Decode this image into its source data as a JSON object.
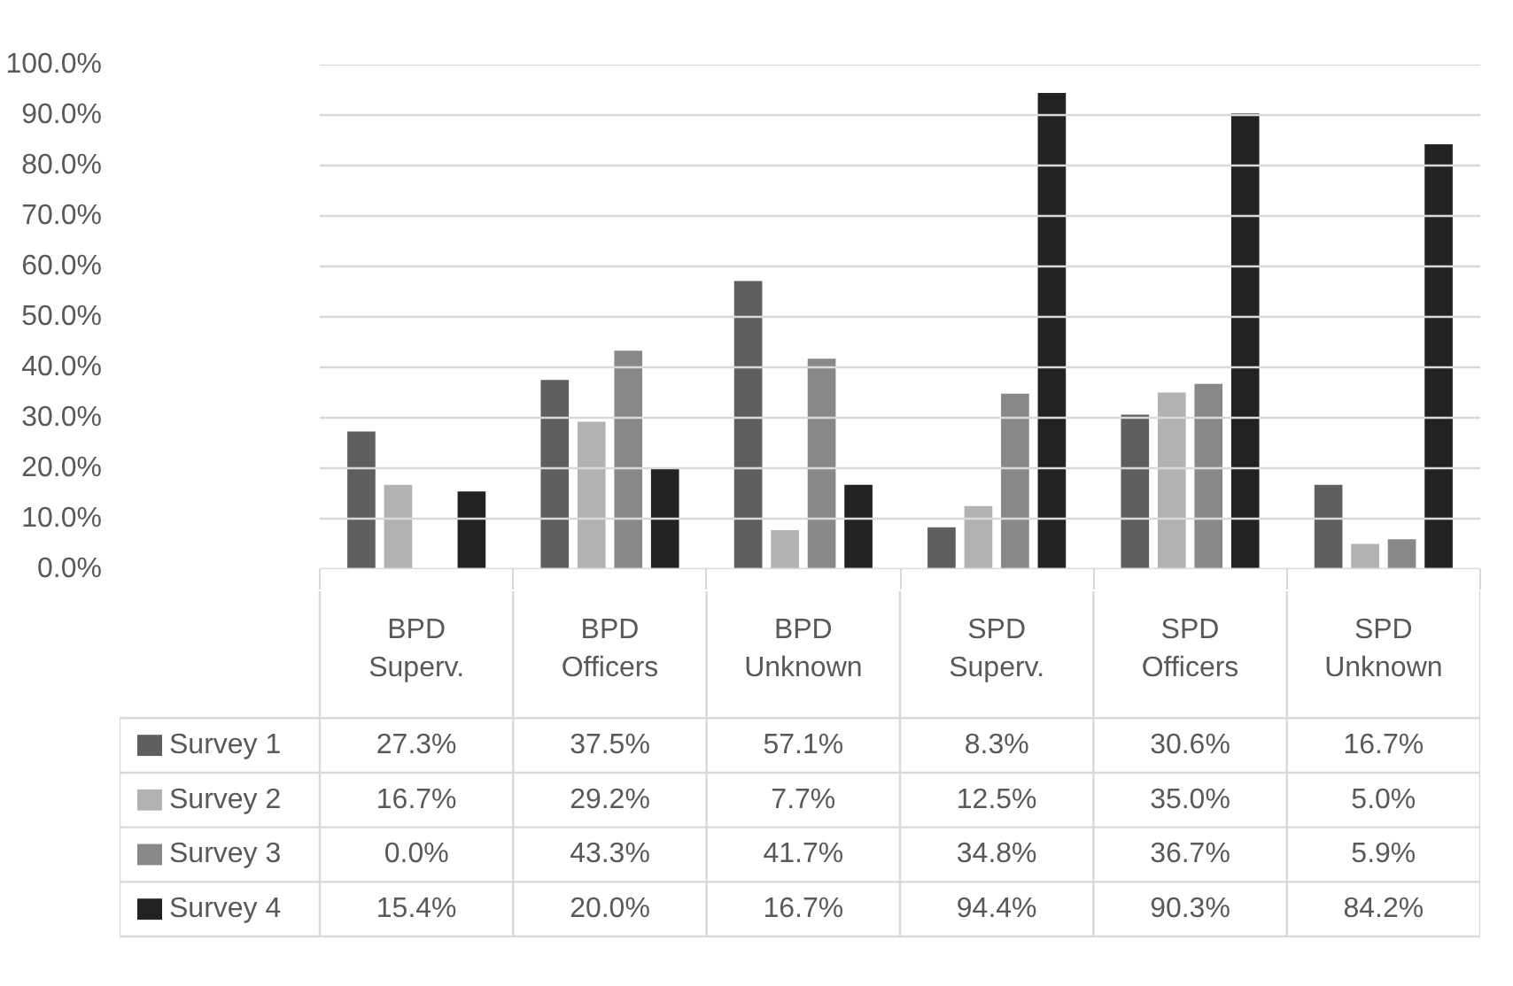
{
  "chart_data": {
    "type": "bar",
    "categories": [
      "BPD Superv.",
      "BPD Officers",
      "BPD Unknown",
      "SPD Superv.",
      "SPD Officers",
      "SPD Unknown"
    ],
    "series": [
      {
        "name": "Survey 1",
        "color": "#5f5f5f",
        "values": [
          27.3,
          37.5,
          57.1,
          8.3,
          30.6,
          16.7
        ],
        "value_labels": [
          "27.3%",
          "37.5%",
          "57.1%",
          "8.3%",
          "30.6%",
          "16.7%"
        ]
      },
      {
        "name": "Survey 2",
        "color": "#b2b2b2",
        "values": [
          16.7,
          29.2,
          7.7,
          12.5,
          35.0,
          5.0
        ],
        "value_labels": [
          "16.7%",
          "29.2%",
          "7.7%",
          "12.5%",
          "35.0%",
          "5.0%"
        ]
      },
      {
        "name": "Survey 3",
        "color": "#888888",
        "values": [
          0.0,
          43.3,
          41.7,
          34.8,
          36.7,
          5.9
        ],
        "value_labels": [
          "0.0%",
          "43.3%",
          "41.7%",
          "34.8%",
          "36.7%",
          "5.9%"
        ]
      },
      {
        "name": "Survey 4",
        "color": "#222222",
        "values": [
          15.4,
          20.0,
          16.7,
          94.4,
          90.3,
          84.2
        ],
        "value_labels": [
          "15.4%",
          "20.0%",
          "16.7%",
          "94.4%",
          "90.3%",
          "84.2%"
        ]
      }
    ],
    "ylim": [
      0,
      100
    ],
    "yticks": [
      {
        "value": 0,
        "label": "0.0%"
      },
      {
        "value": 10,
        "label": "10.0%"
      },
      {
        "value": 20,
        "label": "20.0%"
      },
      {
        "value": 30,
        "label": "30.0%"
      },
      {
        "value": 40,
        "label": "40.0%"
      },
      {
        "value": 50,
        "label": "50.0%"
      },
      {
        "value": 60,
        "label": "60.0%"
      },
      {
        "value": 70,
        "label": "70.0%"
      },
      {
        "value": 80,
        "label": "80.0%"
      },
      {
        "value": 90,
        "label": "90.0%"
      },
      {
        "value": 100,
        "label": "100.0%"
      }
    ],
    "grid": "y",
    "legend": "bottom"
  }
}
